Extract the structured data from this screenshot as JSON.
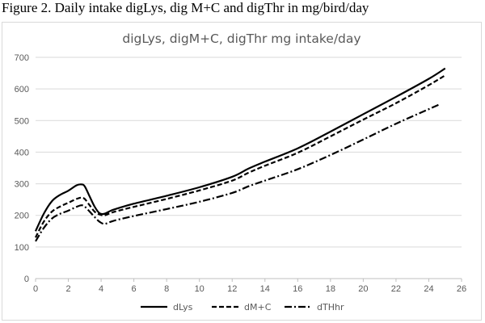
{
  "caption": "Figure 2. Daily intake digLys, dig M+C and digThr in mg/bird/day",
  "chart_data": {
    "type": "line",
    "title": "digLys, digM+C, digThr mg intake/day",
    "xlabel": "",
    "ylabel": "",
    "xlim": [
      0,
      26
    ],
    "ylim": [
      0,
      700
    ],
    "x_ticks": [
      0,
      2,
      4,
      6,
      8,
      10,
      12,
      14,
      16,
      18,
      20,
      22,
      24,
      26
    ],
    "y_ticks": [
      0,
      100,
      200,
      300,
      400,
      500,
      600,
      700
    ],
    "grid": true,
    "legend_position": "bottom",
    "series": [
      {
        "name": "dLys",
        "style": "solid",
        "x": [
          0,
          0.5,
          1,
          1.5,
          2,
          2.5,
          2.8,
          3,
          3.3,
          3.6,
          3.9,
          4.2,
          4.6,
          5,
          6,
          8,
          10,
          12,
          13,
          14,
          16,
          18,
          20,
          22,
          24,
          25
        ],
        "y": [
          150,
          205,
          245,
          265,
          278,
          295,
          298,
          292,
          260,
          228,
          207,
          205,
          215,
          222,
          237,
          262,
          289,
          322,
          348,
          370,
          412,
          465,
          520,
          575,
          632,
          665
        ]
      },
      {
        "name": "dM+C",
        "style": "dashed",
        "x": [
          0,
          0.5,
          1,
          1.5,
          2,
          2.5,
          2.8,
          3,
          3.3,
          3.6,
          3.9,
          4.2,
          4.6,
          5,
          6,
          8,
          10,
          12,
          13,
          14,
          16,
          18,
          20,
          22,
          24,
          25
        ],
        "y": [
          130,
          180,
          212,
          228,
          240,
          252,
          256,
          252,
          232,
          212,
          203,
          200,
          208,
          214,
          227,
          252,
          279,
          310,
          335,
          357,
          398,
          450,
          503,
          555,
          612,
          643
        ]
      },
      {
        "name": "dTHhr",
        "style": "dash-dot",
        "x": [
          0,
          0.5,
          1,
          1.5,
          2,
          2.5,
          2.8,
          3,
          3.3,
          3.6,
          3.9,
          4.2,
          4.6,
          5,
          6,
          8,
          10,
          12,
          13,
          14,
          16,
          18,
          20,
          22,
          24,
          24.7
        ],
        "y": [
          118,
          160,
          190,
          205,
          215,
          227,
          232,
          228,
          212,
          195,
          180,
          173,
          180,
          186,
          198,
          220,
          243,
          271,
          292,
          310,
          346,
          391,
          440,
          490,
          536,
          552
        ]
      }
    ]
  }
}
